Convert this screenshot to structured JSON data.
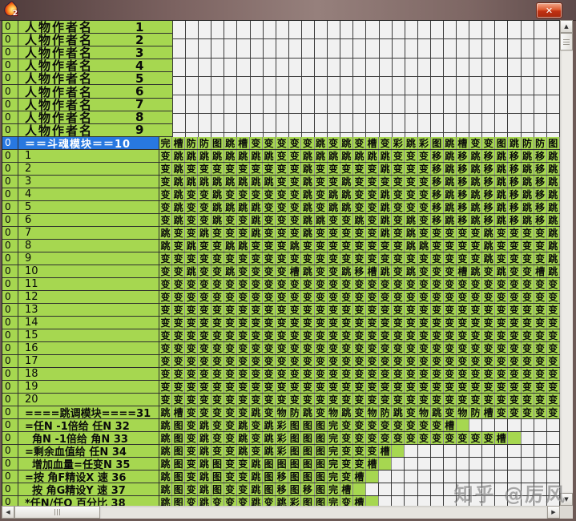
{
  "title_bar": {
    "close_glyph": "✕",
    "icon_badge": "2"
  },
  "colors": {
    "green": "#a6d750",
    "blue": "#2878e0",
    "whitecell": "#f1f1f1",
    "whiteline": "#3c3c3c",
    "cellline": "#8a8a8a",
    "rowline": "#2e2e2e",
    "frame": "#6d5a56"
  },
  "top_rows": [
    {
      "num": "0",
      "label": "人物作者名",
      "index": "1"
    },
    {
      "num": "0",
      "label": "人物作者名",
      "index": "2"
    },
    {
      "num": "0",
      "label": "人物作者名",
      "index": "3"
    },
    {
      "num": "0",
      "label": "人物作者名",
      "index": "4"
    },
    {
      "num": "0",
      "label": "人物作者名",
      "index": "5"
    },
    {
      "num": "0",
      "label": "人物作者名",
      "index": "6"
    },
    {
      "num": "0",
      "label": "人物作者名",
      "index": "7"
    },
    {
      "num": "0",
      "label": "人物作者名",
      "index": "8"
    },
    {
      "num": "0",
      "label": "人物作者名",
      "index": "9"
    }
  ],
  "grid_rows": [
    {
      "num": "0",
      "label": "＝＝斗魂模块＝＝10",
      "kind": "module",
      "selected": true,
      "cells": "完槽防防图跳槽变变变变变跳变跳变槽变彩跳彩图跳槽变变图跳防防图"
    },
    {
      "num": "0",
      "label": "1",
      "kind": "data",
      "cells": "变跳跳跳跳跳跳跳跳变变跳跳跳跳跳跳跳变变变移跳移跳移跳移跳移跳"
    },
    {
      "num": "0",
      "label": "2",
      "kind": "data",
      "cells": "变跳变变变变变变变变变跳变变变变变跳变变变移跳移跳移跳移跳移跳"
    },
    {
      "num": "0",
      "label": "3",
      "kind": "data",
      "cells": "变跳跳跳跳跳跳跳跳变变跳变变跳变变变变变变移跳移跳移跳移跳移跳"
    },
    {
      "num": "0",
      "label": "4",
      "kind": "data",
      "cells": "变跳变变跳变变变变变变跳变跳跳变变跳变变变移跳移跳移跳移跳移跳"
    },
    {
      "num": "0",
      "label": "5",
      "kind": "data",
      "cells": "变跳变变跳跳跳跳变变变跳变跳跳变变跳变变变移跳移跳移跳移跳移跳"
    },
    {
      "num": "0",
      "label": "6",
      "kind": "data",
      "cells": "变跳变变跳变变跳变变变跳跳变变跳变跳变跳变移跳移跳移跳移跳移跳"
    },
    {
      "num": "0",
      "label": "7",
      "kind": "data",
      "cells": "跳变变跳变变变跳变变变跳变变变变变跳变跳变变变变变跳变变变变跳"
    },
    {
      "num": "0",
      "label": "8",
      "kind": "data",
      "cells": "跳变跳变变跳跳变变变跳变变变变变变变变跳跳变变变变跳变变变变跳"
    },
    {
      "num": "0",
      "label": "9",
      "kind": "data",
      "cells": "变变变变变变变变变变变变变变变变变变变变变变变变变跳变变变变跳"
    },
    {
      "num": "0",
      "label": "10",
      "kind": "data",
      "cells": "变变跳变变跳变变变变槽跳变变跳移槽跳变跳变变变槽跳变跳变变槽跳"
    },
    {
      "num": "0",
      "label": "11",
      "kind": "data",
      "cells": "变变变变变变变变变变变变变变变变变变变变变变变变变变变变变变变"
    },
    {
      "num": "0",
      "label": "12",
      "kind": "data",
      "cells": "变变变变变变变变变变变变变变变变变变变变变变变变变变变变变变变"
    },
    {
      "num": "0",
      "label": "13",
      "kind": "data",
      "cells": "变变变变变变变变变变变变变变变变变变变变变变变变变变变变变变变"
    },
    {
      "num": "0",
      "label": "14",
      "kind": "data",
      "cells": "变变变变变变变变变变变变变变变变变变变变变变变变变变变变变变变"
    },
    {
      "num": "0",
      "label": "15",
      "kind": "data",
      "cells": "变变变变变变变变变变变变变变变变变变变变变变变变变变变变变变变"
    },
    {
      "num": "0",
      "label": "16",
      "kind": "data",
      "cells": "变变变变变变变变变变变变变变变变变变变变变变变变变变变变变变变"
    },
    {
      "num": "0",
      "label": "17",
      "kind": "data",
      "cells": "变变变变变变变变变变变变变变变变变变变变变变变变变变变变变变变"
    },
    {
      "num": "0",
      "label": "18",
      "kind": "data",
      "cells": "变变变变变变变变变变变变变变变变变变变变变变变变变变变变变变变"
    },
    {
      "num": "0",
      "label": "19",
      "kind": "data",
      "cells": "变变变变变变变变变变变变变变变变变变变变变变变变变变变变变变变"
    },
    {
      "num": "0",
      "label": "20",
      "kind": "data",
      "cells": "变变变变变变变变变变变变变变变变变变变变变变变变变变变变变变变"
    },
    {
      "num": "0",
      "label": "====跳调模块====31",
      "kind": "bottom",
      "cells": "跳槽变变变变变跳变物防跳变物跳变物防跳变物跳变物防槽变变变变变"
    },
    {
      "num": "0",
      "label": "=任N -1倍给 任N 32",
      "kind": "bottom",
      "cells": "跳图变跳变变跳变跳彩图图图完变变变变变变变变槽_......."
    },
    {
      "num": "0",
      "label": "  角N -1倍给 角N 33",
      "kind": "bottom",
      "cells": "跳图变跳变变跳变跳彩图图图完变变变变变变变变变变变变槽_..."
    },
    {
      "num": "0",
      "label": "=剩余血值给 任N 34",
      "kind": "bottom",
      "cells": "跳图变跳变变跳变跳彩图图图完变变变槽_............"
    },
    {
      "num": "0",
      "label": "  增加血量=任变N 35",
      "kind": "bottom",
      "cells": "跳图变跳图变变跳图图图图图完变变槽_............."
    },
    {
      "num": "0",
      "label": "=按 角F精设X 速 36",
      "kind": "bottom",
      "cells": "跳图变跳图变变跳图移图图图完变槽_.............."
    },
    {
      "num": "0",
      "label": "  按 角G精设Y 速 37",
      "kind": "bottom",
      "cells": "跳图变跳图变变跳图移图移图完槽_..............."
    },
    {
      "num": "0",
      "label": "*任N/任O 百分比 38",
      "kind": "bottom",
      "cells": "跳图变跳变变变跳变跳彩图图完变槽_.............."
    }
  ],
  "scrollbar": {
    "up": "▲",
    "down": "▼",
    "left": "◀",
    "right": "▶"
  },
  "watermark": "知乎 @厉风"
}
